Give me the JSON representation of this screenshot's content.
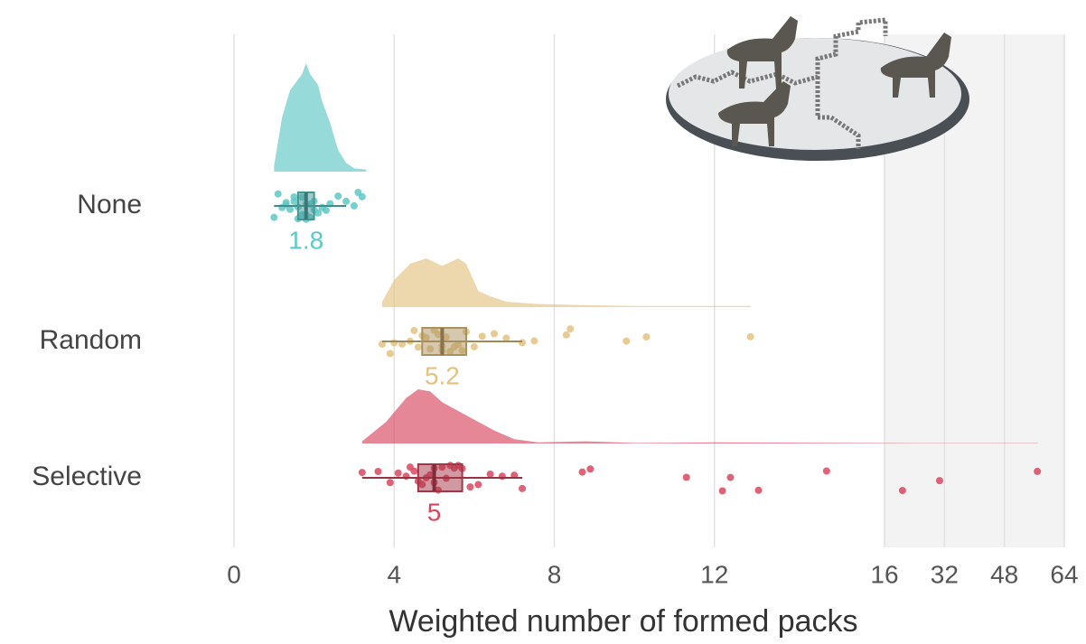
{
  "chart_data": {
    "type": "raincloud",
    "xlabel": "Weighted number of formed packs",
    "categories": [
      "None",
      "Random",
      "Selective"
    ],
    "xlim": [
      0,
      64
    ],
    "xbreak": 16,
    "xticks": [
      0,
      4,
      8,
      12,
      16,
      32,
      48,
      64
    ],
    "grid": true,
    "series": [
      {
        "name": "None",
        "color": "#5ec8c4",
        "median": 1.8,
        "q1": 1.6,
        "q3": 2.0,
        "whisker_low": 1.0,
        "whisker_high": 2.8,
        "points": [
          1.0,
          1.1,
          1.2,
          1.3,
          1.3,
          1.4,
          1.5,
          1.5,
          1.6,
          1.6,
          1.7,
          1.7,
          1.8,
          1.8,
          1.8,
          1.9,
          1.9,
          2.0,
          2.0,
          2.1,
          2.2,
          2.3,
          2.4,
          2.6,
          2.8,
          3.0,
          3.1,
          3.2
        ],
        "density": {
          "x": [
            1.0,
            1.2,
            1.4,
            1.6,
            1.7,
            1.8,
            1.9,
            2.0,
            2.1,
            2.2,
            2.4,
            2.6,
            2.8,
            3.0,
            3.3
          ],
          "y": [
            0.05,
            0.5,
            0.75,
            0.85,
            0.9,
            1.0,
            0.9,
            0.85,
            0.8,
            0.65,
            0.45,
            0.2,
            0.08,
            0.03,
            0.02
          ]
        }
      },
      {
        "name": "Random",
        "color": "#e3c27f",
        "median": 5.2,
        "q1": 4.7,
        "q3": 5.8,
        "whisker_low": 3.7,
        "whisker_high": 7.2,
        "points": [
          3.7,
          3.9,
          4.0,
          4.2,
          4.4,
          4.5,
          4.6,
          4.7,
          4.8,
          4.9,
          5.0,
          5.1,
          5.2,
          5.2,
          5.3,
          5.4,
          5.5,
          5.6,
          5.7,
          5.8,
          6.0,
          6.2,
          6.5,
          6.8,
          7.2,
          7.5,
          8.3,
          8.4,
          9.8,
          10.3,
          12.9
        ],
        "density": {
          "x": [
            3.7,
            4.0,
            4.4,
            4.8,
            5.2,
            5.6,
            5.8,
            6.1,
            6.4,
            6.8,
            7.5,
            8.5,
            10,
            12.9
          ],
          "y": [
            0.05,
            0.25,
            0.4,
            0.45,
            0.38,
            0.45,
            0.4,
            0.15,
            0.1,
            0.05,
            0.03,
            0.02,
            0.01,
            0.01
          ]
        }
      },
      {
        "name": "Selective",
        "color": "#d9475f",
        "median": 5,
        "q1": 4.6,
        "q3": 5.7,
        "whisker_low": 3.2,
        "whisker_high": 7.2,
        "points": [
          3.2,
          3.6,
          3.9,
          4.1,
          4.3,
          4.4,
          4.5,
          4.6,
          4.7,
          4.8,
          4.9,
          5.0,
          5.0,
          5.1,
          5.2,
          5.3,
          5.4,
          5.5,
          5.6,
          5.7,
          5.9,
          6.1,
          6.4,
          6.7,
          7.0,
          7.2,
          8.7,
          8.9,
          11.3,
          12.2,
          12.4,
          13.1,
          14.8,
          20.8,
          30.7,
          56.8
        ],
        "density": {
          "x": [
            3.2,
            3.8,
            4.3,
            4.6,
            4.9,
            5.2,
            5.6,
            6.0,
            6.5,
            7.0,
            7.6,
            8.8,
            10,
            12,
            15.9,
            30,
            57
          ],
          "y": [
            0.02,
            0.2,
            0.42,
            0.5,
            0.48,
            0.38,
            0.3,
            0.22,
            0.12,
            0.04,
            0.01,
            0.02,
            0.005,
            0.01,
            0.005,
            0.003,
            0.003
          ]
        }
      }
    ]
  }
}
